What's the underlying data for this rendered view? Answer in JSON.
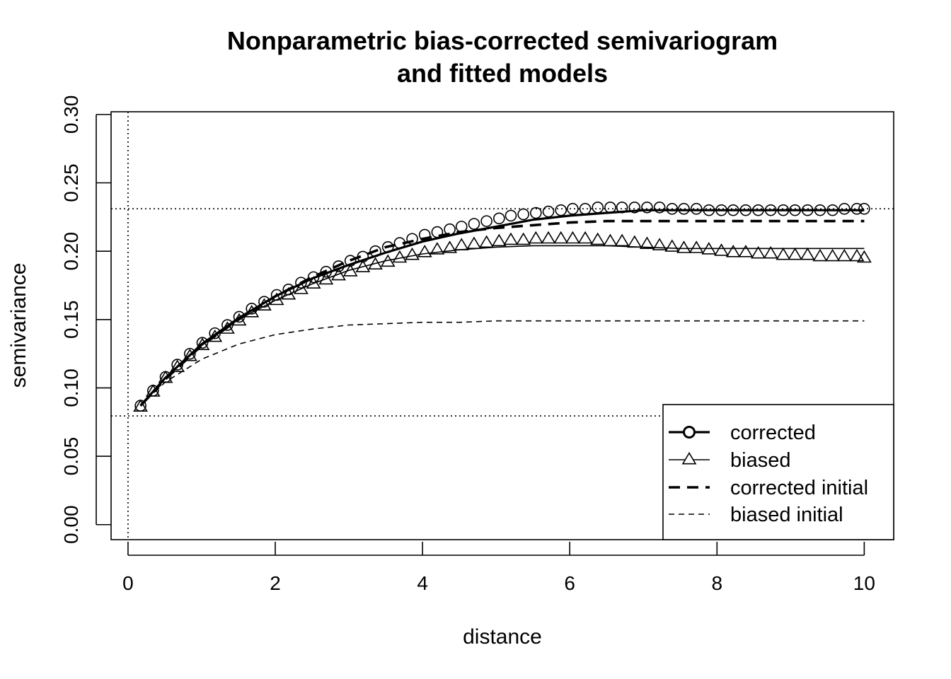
{
  "chart_data": {
    "type": "line",
    "title": [
      "Nonparametric bias-corrected semivariogram",
      "and fitted models"
    ],
    "xlabel": "distance",
    "ylabel": "semivariance",
    "xlim": [
      -0.23,
      10.4
    ],
    "ylim": [
      -0.011,
      0.302
    ],
    "x_ticks": [
      0,
      2,
      4,
      6,
      8,
      10
    ],
    "x_tick_labels": [
      "0",
      "2",
      "4",
      "6",
      "8",
      "10"
    ],
    "y_ticks": [
      0.0,
      0.05,
      0.1,
      0.15,
      0.2,
      0.25,
      0.3
    ],
    "y_tick_labels": [
      "0.00",
      "0.05",
      "0.10",
      "0.15",
      "0.20",
      "0.25",
      "0.30"
    ],
    "reference_lines": {
      "vertical_x": [
        0
      ],
      "horizontal_y": [
        0.231,
        0.0795
      ]
    },
    "legend": {
      "position": "bottom-right",
      "entries": [
        {
          "label": "corrected",
          "style": "thick-solid-circle"
        },
        {
          "label": "biased",
          "style": "thin-solid-triangle"
        },
        {
          "label": "corrected initial",
          "style": "thick-dashed"
        },
        {
          "label": "biased initial",
          "style": "thin-dashed"
        }
      ]
    },
    "series": [
      {
        "name": "corrected",
        "marker": "circle",
        "x": [
          0.17,
          0.34,
          0.51,
          0.67,
          0.84,
          1.01,
          1.18,
          1.35,
          1.51,
          1.68,
          1.85,
          2.02,
          2.18,
          2.35,
          2.52,
          2.69,
          2.86,
          3.02,
          3.19,
          3.36,
          3.53,
          3.69,
          3.86,
          4.03,
          4.2,
          4.37,
          4.53,
          4.7,
          4.87,
          5.04,
          5.2,
          5.37,
          5.54,
          5.71,
          5.88,
          6.04,
          6.21,
          6.38,
          6.55,
          6.71,
          6.88,
          7.05,
          7.22,
          7.39,
          7.55,
          7.72,
          7.89,
          8.06,
          8.22,
          8.39,
          8.56,
          8.73,
          8.9,
          9.06,
          9.23,
          9.4,
          9.57,
          9.73,
          9.9,
          10.0
        ],
        "y": [
          0.087,
          0.098,
          0.108,
          0.117,
          0.125,
          0.133,
          0.14,
          0.146,
          0.152,
          0.158,
          0.163,
          0.168,
          0.172,
          0.177,
          0.181,
          0.185,
          0.189,
          0.193,
          0.196,
          0.2,
          0.203,
          0.206,
          0.209,
          0.212,
          0.214,
          0.216,
          0.218,
          0.22,
          0.222,
          0.224,
          0.226,
          0.227,
          0.228,
          0.229,
          0.23,
          0.231,
          0.231,
          0.232,
          0.232,
          0.232,
          0.232,
          0.232,
          0.232,
          0.231,
          0.231,
          0.231,
          0.23,
          0.23,
          0.23,
          0.23,
          0.23,
          0.23,
          0.23,
          0.23,
          0.23,
          0.23,
          0.23,
          0.231,
          0.231,
          0.231
        ]
      },
      {
        "name": "biased",
        "marker": "triangle",
        "x": [
          0.17,
          0.34,
          0.51,
          0.67,
          0.84,
          1.01,
          1.18,
          1.35,
          1.51,
          1.68,
          1.85,
          2.02,
          2.18,
          2.35,
          2.52,
          2.69,
          2.86,
          3.02,
          3.19,
          3.36,
          3.53,
          3.69,
          3.86,
          4.03,
          4.2,
          4.37,
          4.53,
          4.7,
          4.87,
          5.04,
          5.2,
          5.37,
          5.54,
          5.71,
          5.88,
          6.04,
          6.21,
          6.38,
          6.55,
          6.71,
          6.88,
          7.05,
          7.22,
          7.39,
          7.55,
          7.72,
          7.89,
          8.06,
          8.22,
          8.39,
          8.56,
          8.73,
          8.9,
          9.06,
          9.23,
          9.4,
          9.57,
          9.73,
          9.9,
          10.0
        ],
        "y": [
          0.086,
          0.097,
          0.107,
          0.115,
          0.123,
          0.131,
          0.137,
          0.143,
          0.149,
          0.155,
          0.16,
          0.164,
          0.168,
          0.172,
          0.176,
          0.179,
          0.182,
          0.185,
          0.188,
          0.19,
          0.192,
          0.195,
          0.197,
          0.199,
          0.201,
          0.202,
          0.204,
          0.205,
          0.206,
          0.207,
          0.208,
          0.208,
          0.209,
          0.209,
          0.209,
          0.209,
          0.209,
          0.208,
          0.207,
          0.207,
          0.206,
          0.205,
          0.204,
          0.203,
          0.202,
          0.202,
          0.201,
          0.2,
          0.199,
          0.199,
          0.198,
          0.198,
          0.197,
          0.197,
          0.197,
          0.196,
          0.196,
          0.196,
          0.196,
          0.195
        ]
      },
      {
        "name": "corrected initial",
        "x": [
          0.17,
          0.5,
          1.0,
          1.5,
          2.0,
          2.5,
          3.0,
          3.5,
          4.0,
          4.5,
          5.0,
          5.5,
          6.0,
          6.5,
          7.0,
          7.5,
          8.0,
          8.5,
          9.0,
          9.5,
          10.0
        ],
        "y": [
          0.087,
          0.106,
          0.131,
          0.15,
          0.167,
          0.181,
          0.193,
          0.203,
          0.209,
          0.214,
          0.217,
          0.219,
          0.221,
          0.222,
          0.222,
          0.222,
          0.222,
          0.222,
          0.222,
          0.222,
          0.222
        ]
      },
      {
        "name": "biased initial",
        "x": [
          0.17,
          0.5,
          1.0,
          1.5,
          2.0,
          2.5,
          3.0,
          3.5,
          4.0,
          4.5,
          5.0,
          5.5,
          6.0,
          6.5,
          7.0,
          7.5,
          8.0,
          8.5,
          9.0,
          9.5,
          10.0
        ],
        "y": [
          0.087,
          0.104,
          0.121,
          0.132,
          0.139,
          0.143,
          0.146,
          0.147,
          0.148,
          0.148,
          0.149,
          0.149,
          0.149,
          0.149,
          0.149,
          0.149,
          0.149,
          0.149,
          0.149,
          0.149,
          0.149
        ]
      },
      {
        "name": "corrected fitted",
        "x": [
          0.17,
          0.5,
          1.0,
          1.5,
          2.0,
          2.5,
          3.0,
          3.5,
          4.0,
          4.5,
          5.0,
          5.5,
          6.0,
          6.5,
          7.0,
          7.5,
          8.0,
          8.5,
          9.0,
          9.5,
          10.0
        ],
        "y": [
          0.087,
          0.107,
          0.132,
          0.151,
          0.167,
          0.18,
          0.19,
          0.199,
          0.207,
          0.213,
          0.218,
          0.223,
          0.226,
          0.228,
          0.23,
          0.23,
          0.23,
          0.23,
          0.23,
          0.23,
          0.23
        ]
      },
      {
        "name": "biased fitted",
        "x": [
          0.17,
          0.5,
          1.0,
          1.5,
          2.0,
          2.5,
          3.0,
          3.5,
          4.0,
          4.5,
          5.0,
          5.5,
          6.0,
          6.5,
          7.0,
          7.5,
          8.0,
          8.5,
          9.0,
          9.5,
          10.0
        ],
        "y": [
          0.087,
          0.107,
          0.131,
          0.15,
          0.164,
          0.176,
          0.186,
          0.193,
          0.198,
          0.201,
          0.203,
          0.204,
          0.204,
          0.204,
          0.203,
          0.202,
          0.202,
          0.202,
          0.202,
          0.202,
          0.202
        ]
      }
    ]
  }
}
